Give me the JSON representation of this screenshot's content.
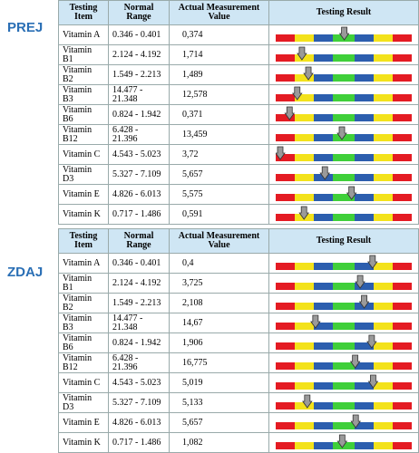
{
  "sections": [
    {
      "label": "PREJ",
      "table": {
        "header": [
          "Testing Item",
          "Normal Range",
          "Actual Measurement Value",
          "Testing Result"
        ],
        "rows": [
          [
            "Vitamin A",
            "0.346 - 0.401",
            "0,374"
          ],
          [
            "Vitamin B1",
            "2.124 - 4.192",
            "1,714"
          ],
          [
            "Vitamin B2",
            "1.549 - 2.213",
            "1,489"
          ],
          [
            "Vitamin B3",
            "14.477 - 21.348",
            "12,578"
          ],
          [
            "Vitamin B6",
            "0.824 - 1.942",
            "0,371"
          ],
          [
            "Vitamin B12",
            "6.428 - 21.396",
            "13,459"
          ],
          [
            "Vitamin C",
            "4.543 - 5.023",
            "3,72"
          ],
          [
            "Vitamin D3",
            "5.327 - 7.109",
            "5,657"
          ],
          [
            "Vitamin E",
            "4.826 - 6.013",
            "5,575"
          ],
          [
            "Vitamin K",
            "0.717 - 1.486",
            "0,591"
          ]
        ]
      }
    },
    {
      "label": "ZDAJ",
      "table": {
        "header": [
          "Testing Item",
          "Normal Range",
          "Actual Measurement Value",
          "Testing Result"
        ],
        "rows": [
          [
            "Vitamin A",
            "0.346 - 0.401",
            "0,4"
          ],
          [
            "Vitamin B1",
            "2.124 - 4.192",
            "3,725"
          ],
          [
            "Vitamin B2",
            "1.549 - 2.213",
            "2,108"
          ],
          [
            "Vitamin B3",
            "14.477 - 21.348",
            "14,67"
          ],
          [
            "Vitamin B6",
            "0.824 - 1.942",
            "1,906"
          ],
          [
            "Vitamin B12",
            "6.428 - 21.396",
            "16,775"
          ],
          [
            "Vitamin C",
            "4.543 - 5.023",
            "5,019"
          ],
          [
            "Vitamin D3",
            "5.327 - 7.109",
            "5,133"
          ],
          [
            "Vitamin E",
            "4.826 - 6.013",
            "5,657"
          ],
          [
            "Vitamin K",
            "0.717 - 1.486",
            "1,082"
          ]
        ]
      }
    }
  ]
}
